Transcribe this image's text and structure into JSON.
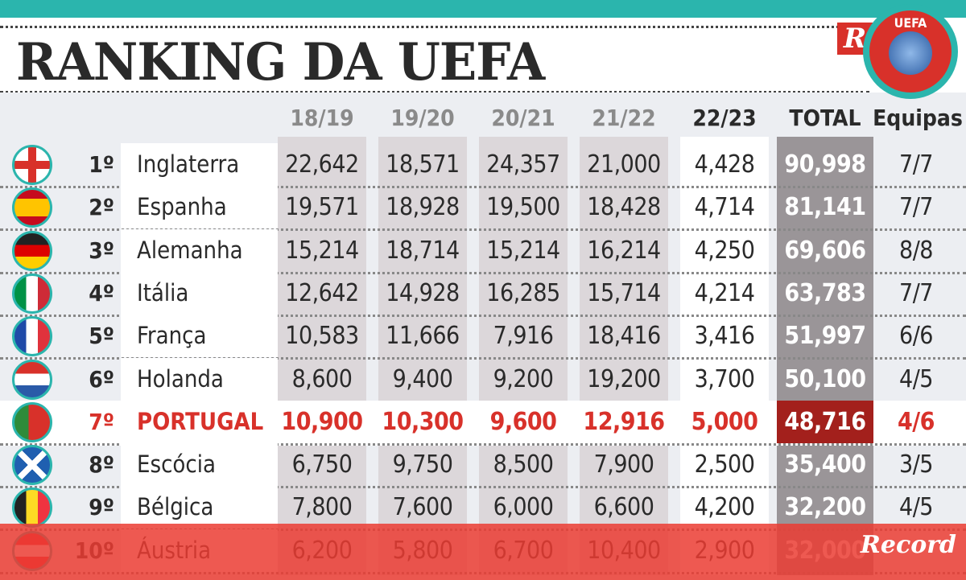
{
  "title": "RANKING DA UEFA",
  "badge_text": "UEFA",
  "brand_initial": "R",
  "brand": "Record",
  "headers": [
    "18/19",
    "19/20",
    "20/21",
    "21/22",
    "22/23",
    "TOTAL",
    "Equipas"
  ],
  "colors": {
    "teal": "#2bb5ad",
    "highlight": "#d8312a",
    "total_bg": "#9a9598",
    "total_highlight_bg": "#a3201c"
  },
  "rows": [
    {
      "rank": "1º",
      "country": "Inglaterra",
      "flag": "england-flag-icon",
      "values": [
        "22,642",
        "18,571",
        "24,357",
        "21,000",
        "4,428"
      ],
      "total": "90,998",
      "teams": "7/7"
    },
    {
      "rank": "2º",
      "country": "Espanha",
      "flag": "spain-flag-icon",
      "values": [
        "19,571",
        "18,928",
        "19,500",
        "18,428",
        "4,714"
      ],
      "total": "81,141",
      "teams": "7/7"
    },
    {
      "rank": "3º",
      "country": "Alemanha",
      "flag": "germany-flag-icon",
      "values": [
        "15,214",
        "18,714",
        "15,214",
        "16,214",
        "4,250"
      ],
      "total": "69,606",
      "teams": "8/8"
    },
    {
      "rank": "4º",
      "country": "Itália",
      "flag": "italy-flag-icon",
      "values": [
        "12,642",
        "14,928",
        "16,285",
        "15,714",
        "4,214"
      ],
      "total": "63,783",
      "teams": "7/7"
    },
    {
      "rank": "5º",
      "country": "França",
      "flag": "france-flag-icon",
      "values": [
        "10,583",
        "11,666",
        "7,916",
        "18,416",
        "3,416"
      ],
      "total": "51,997",
      "teams": "6/6"
    },
    {
      "rank": "6º",
      "country": "Holanda",
      "flag": "netherlands-flag-icon",
      "values": [
        "8,600",
        "9,400",
        "9,200",
        "19,200",
        "3,700"
      ],
      "total": "50,100",
      "teams": "4/5"
    },
    {
      "rank": "7º",
      "country": "PORTUGAL",
      "flag": "portugal-flag-icon",
      "values": [
        "10,900",
        "10,300",
        "9,600",
        "12,916",
        "5,000"
      ],
      "total": "48,716",
      "teams": "4/6",
      "highlight": true
    },
    {
      "rank": "8º",
      "country": "Escócia",
      "flag": "scotland-flag-icon",
      "values": [
        "6,750",
        "9,750",
        "8,500",
        "7,900",
        "2,500"
      ],
      "total": "35,400",
      "teams": "3/5"
    },
    {
      "rank": "9º",
      "country": "Bélgica",
      "flag": "belgium-flag-icon",
      "values": [
        "7,800",
        "7,600",
        "6,000",
        "6,600",
        "4,200"
      ],
      "total": "32,200",
      "teams": "4/5"
    },
    {
      "rank": "10º",
      "country": "Áustria",
      "flag": "austria-flag-icon",
      "values": [
        "6,200",
        "5,800",
        "6,700",
        "10,400",
        "2,900"
      ],
      "total": "32,000",
      "teams": ""
    }
  ]
}
